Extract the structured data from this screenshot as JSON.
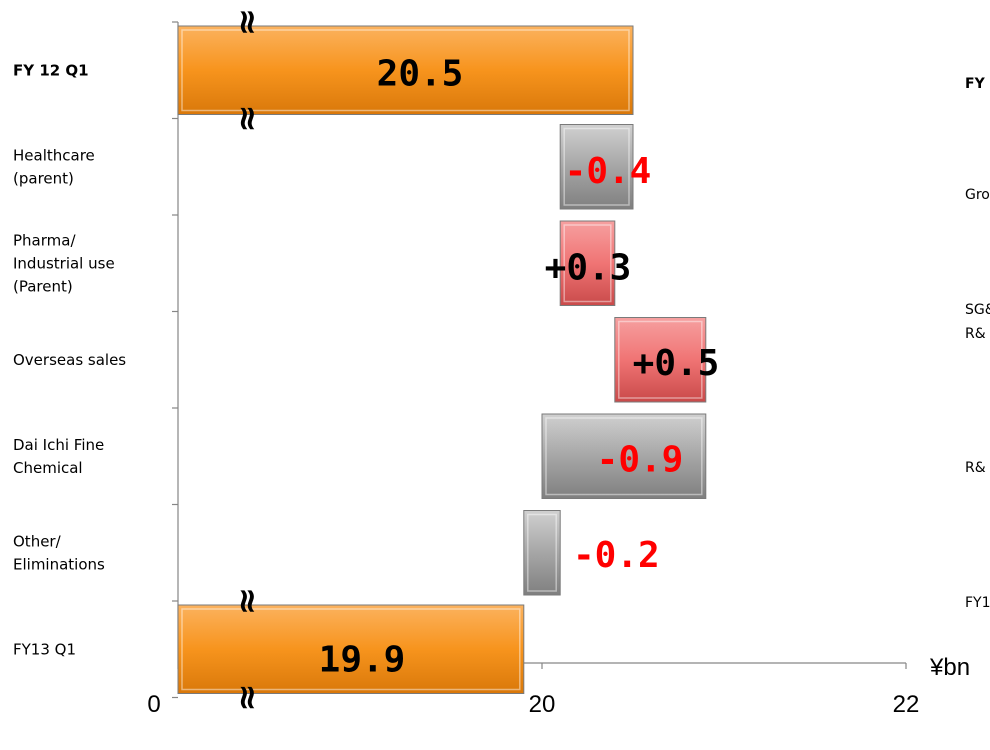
{
  "chart_data": {
    "type": "bar",
    "subtype": "waterfall",
    "orientation": "horizontal",
    "title": "",
    "xlabel": "",
    "ylabel": "",
    "unit_label": "¥bn",
    "xlim": [
      0,
      22
    ],
    "axis_break": true,
    "x_ticks": [
      "0",
      "20",
      "22"
    ],
    "grid": false,
    "categories": [
      {
        "label_lines": [
          "FY 12 Q1"
        ],
        "bold": true
      },
      {
        "label_lines": [
          "Healthcare",
          "(parent)"
        ],
        "bold": false
      },
      {
        "label_lines": [
          "Pharma/",
          "Industrial use",
          "(Parent)"
        ],
        "bold": false
      },
      {
        "label_lines": [
          "Overseas sales"
        ],
        "bold": false
      },
      {
        "label_lines": [
          "Dai Ichi Fine",
          "Chemical"
        ],
        "bold": false
      },
      {
        "label_lines": [
          "Other/",
          "Eliminations"
        ],
        "bold": false
      },
      {
        "label_lines": [
          "FY13 Q1"
        ],
        "bold": false
      }
    ],
    "bars": [
      {
        "kind": "total",
        "start": 0,
        "end": 20.5,
        "label": "20.5",
        "color": "#f7941d",
        "label_color": "#000000"
      },
      {
        "kind": "decrease",
        "start": 20.5,
        "end": 20.1,
        "label": "-0.4",
        "color": "#a6a6a6",
        "label_color": "#ff0000"
      },
      {
        "kind": "increase",
        "start": 20.1,
        "end": 20.4,
        "label": "+0.3",
        "color": "#f07474",
        "label_color": "#000000"
      },
      {
        "kind": "increase",
        "start": 20.4,
        "end": 20.9,
        "label": "+0.5",
        "color": "#f07474",
        "label_color": "#000000"
      },
      {
        "kind": "decrease",
        "start": 20.9,
        "end": 20.0,
        "label": "-0.9",
        "color": "#a6a6a6",
        "label_color": "#ff0000"
      },
      {
        "kind": "decrease",
        "start": 20.1,
        "end": 19.9,
        "label": "-0.2",
        "color": "#a6a6a6",
        "label_color": "#ff0000"
      },
      {
        "kind": "total",
        "start": 0,
        "end": 19.9,
        "label": "19.9",
        "color": "#f7941d",
        "label_color": "#000000"
      }
    ]
  },
  "partial_side_labels": [
    "FY",
    "Gro",
    "SG&",
    "R&",
    "R&",
    "FY1"
  ]
}
